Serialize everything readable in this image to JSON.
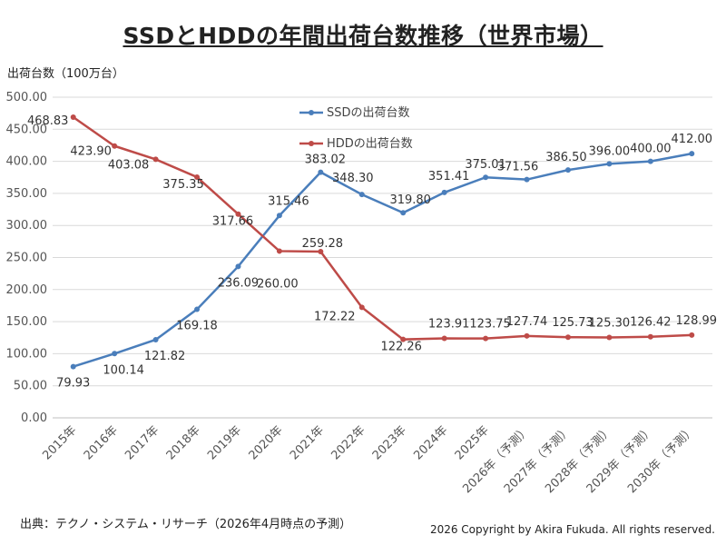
{
  "title": "SSDとHDDの年間出荷台数推移（世界市場）",
  "y_unit_label": "出荷台数（100万台）",
  "source_note": "出典：テクノ・システム・リサーチ（2026年4月時点の予測）",
  "copyright": "2026 Copyright by Akira Fukuda.  All rights reserved.",
  "colors": {
    "ssd": "#4a7ebb",
    "hdd": "#be4b48",
    "grid": "#d9d9d9"
  },
  "chart_data": {
    "type": "line",
    "categories": [
      "2015年",
      "2016年",
      "2017年",
      "2018年",
      "2019年",
      "2020年",
      "2021年",
      "2022年",
      "2023年",
      "2024年",
      "2025年",
      "2026年（予測）",
      "2027年（予測）",
      "2028年（予測）",
      "2029年（予測）",
      "2030年（予測）"
    ],
    "series": [
      {
        "name": "SSDの出荷台数",
        "values": [
          79.93,
          100.14,
          121.82,
          169.18,
          236.09,
          315.46,
          383.02,
          348.3,
          319.8,
          351.41,
          375.01,
          371.56,
          386.5,
          396.0,
          400.0,
          412.0
        ],
        "labels": [
          "79.93",
          "100.14",
          "121.82",
          "169.18",
          "236.09",
          "315.46",
          "383.02",
          "348.30",
          "319.80",
          "351.41",
          "375.01",
          "371.56",
          "386.50",
          "396.00",
          "400.00",
          "412.00"
        ]
      },
      {
        "name": "HDDの出荷台数",
        "values": [
          468.83,
          423.9,
          403.08,
          375.35,
          317.66,
          260.0,
          259.28,
          172.22,
          122.26,
          123.91,
          123.75,
          127.74,
          125.73,
          125.3,
          126.42,
          128.99
        ],
        "labels": [
          "468.83",
          "423.90",
          "403.08",
          "375.35",
          "317.66",
          "260.00",
          "259.28",
          "172.22",
          "122.26",
          "123.91",
          "123.75",
          "127.74",
          "125.73",
          "125.30",
          "126.42",
          "128.99"
        ]
      }
    ],
    "ylim": [
      0,
      500
    ],
    "yticks": [
      "0.00",
      "50.00",
      "100.00",
      "150.00",
      "200.00",
      "250.00",
      "300.00",
      "350.00",
      "400.00",
      "450.00",
      "500.00"
    ],
    "grid": true,
    "legend_position": "center-top inside plot"
  }
}
